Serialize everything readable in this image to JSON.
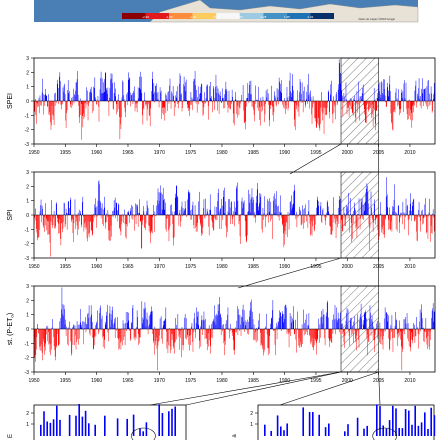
{
  "map_strip": {
    "colorbar_ticks": [
      "-2.33",
      "-1.65",
      "-1.28",
      "-0.84",
      "0.84",
      "1.28",
      "1.65",
      "2.33"
    ],
    "colorbar_colors": [
      "#8b0000",
      "#e31a1c",
      "#fd8d3c",
      "#fecc5c",
      "#f7f7f7",
      "#9ecae1",
      "#4292c6",
      "#2171b5",
      "#08306b"
    ],
    "sea_color": "#4a7fb5",
    "land_color": "#e7e1d6"
  },
  "chart_data": [
    {
      "type": "bar",
      "ylabel": "SPEI",
      "ylim": [
        -3,
        3
      ],
      "yticks": [
        3,
        2,
        1,
        0,
        -1,
        -2,
        -3
      ],
      "xlim": [
        1950,
        2014
      ],
      "xticks": [
        "1950",
        "1955",
        "1960",
        "1965",
        "1970",
        "1975",
        "1980",
        "1985",
        "1990",
        "1995",
        "2000",
        "2005",
        "2010"
      ],
      "hatched_period": [
        1999,
        2005
      ],
      "series": [
        {
          "values_positive_color": "#0000ff",
          "values_negative_color": "#ff0000",
          "seed": 11
        }
      ]
    },
    {
      "type": "bar",
      "ylabel": "SPI",
      "ylim": [
        -3,
        3
      ],
      "yticks": [
        3,
        2,
        1,
        0,
        -1,
        -2,
        -3
      ],
      "xlim": [
        1950,
        2014
      ],
      "xticks": [
        "1950",
        "1955",
        "1960",
        "1965",
        "1970",
        "1975",
        "1980",
        "1985",
        "1990",
        "1995",
        "2000",
        "2005",
        "2010"
      ],
      "hatched_period": [
        1999,
        2005
      ],
      "series": [
        {
          "values_positive_color": "#0000ff",
          "values_negative_color": "#ff0000",
          "seed": 23
        }
      ]
    },
    {
      "type": "bar",
      "ylabel": "st. (P-ET",
      "ylabel_sub": "o",
      "ylabel_end": ")",
      "ylim": [
        -3,
        3
      ],
      "yticks": [
        3,
        2,
        1,
        0,
        -1,
        -2,
        -3
      ],
      "xlim": [
        1950,
        2014
      ],
      "xticks": [
        "1950",
        "1955",
        "1960",
        "1965",
        "1970",
        "1975",
        "1980",
        "1985",
        "1990",
        "1995",
        "2000",
        "2005",
        "2010"
      ],
      "hatched_period": [
        1999,
        2005
      ],
      "series": [
        {
          "values_positive_color": "#0000ff",
          "values_negative_color": "#ff0000",
          "seed": 37
        }
      ]
    }
  ],
  "zoom_panels": [
    {
      "yticks": [
        "2",
        "1"
      ],
      "ylabel": "E",
      "seed": 51
    },
    {
      "yticks": [
        "2",
        "1"
      ],
      "ylabel": "a",
      "seed": 67
    }
  ]
}
